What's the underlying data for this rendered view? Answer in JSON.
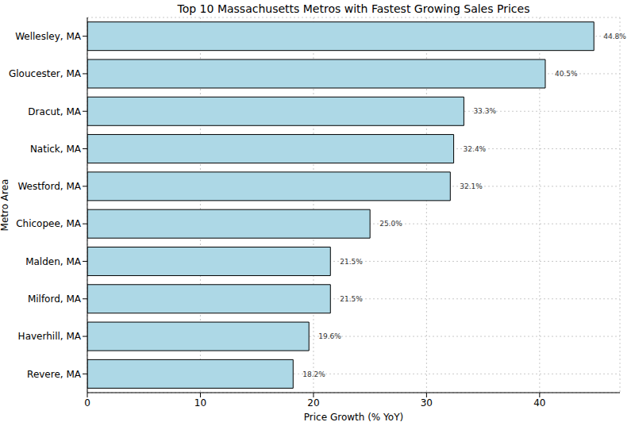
{
  "chart_data": {
    "type": "bar",
    "title": "Top 10 Massachusetts Metros with Fastest Growing Sales Prices",
    "x_label": "Price Growth (% YoY)",
    "y_label": "Metro Area",
    "orientation": "horizontal",
    "categories": [
      "Wellesley, MA",
      "Gloucester, MA",
      "Dracut, MA",
      "Natick, MA",
      "Westford, MA",
      "Chicopee, MA",
      "Malden, MA",
      "Milford, MA",
      "Haverhill, MA",
      "Revere, MA"
    ],
    "values": [
      44.8,
      40.5,
      33.3,
      32.4,
      32.1,
      25.0,
      21.5,
      21.5,
      19.6,
      18.2
    ],
    "value_labels": [
      "44.8%",
      "40.5%",
      "33.3%",
      "32.4%",
      "32.1%",
      "25.0%",
      "21.5%",
      "21.5%",
      "19.6%",
      "18.2%"
    ],
    "data_labels": true,
    "color": "#add8e6",
    "xlim": [
      0,
      47.1
    ],
    "xticks": [
      0,
      10,
      20,
      30,
      40
    ],
    "grid": true
  }
}
